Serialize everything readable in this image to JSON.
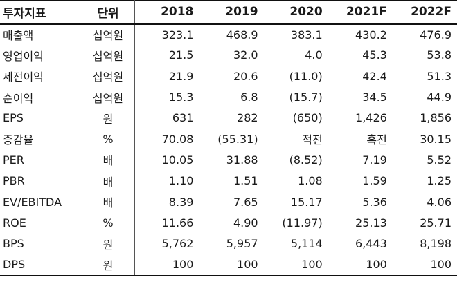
{
  "table": {
    "header": {
      "label": "투자지표",
      "unit": "단위",
      "years": [
        "2018",
        "2019",
        "2020",
        "2021F",
        "2022F"
      ]
    },
    "rows": [
      {
        "label": "매출액",
        "unit": "십억원",
        "values": [
          "323.1",
          "468.9",
          "383.1",
          "430.2",
          "476.9"
        ]
      },
      {
        "label": "영업이익",
        "unit": "십억원",
        "values": [
          "21.5",
          "32.0",
          "4.0",
          "45.3",
          "53.8"
        ]
      },
      {
        "label": "세전이익",
        "unit": "십억원",
        "values": [
          "21.9",
          "20.6",
          "(11.0)",
          "42.4",
          "51.3"
        ]
      },
      {
        "label": "순이익",
        "unit": "십억원",
        "values": [
          "15.3",
          "6.8",
          "(15.7)",
          "34.5",
          "44.9"
        ]
      },
      {
        "label": "EPS",
        "unit": "원",
        "values": [
          "631",
          "282",
          "(650)",
          "1,426",
          "1,856"
        ]
      },
      {
        "label": "증감율",
        "unit": "%",
        "values": [
          "70.08",
          "(55.31)",
          "적전",
          "흑전",
          "30.15"
        ]
      },
      {
        "label": "PER",
        "unit": "배",
        "values": [
          "10.05",
          "31.88",
          "(8.52)",
          "7.19",
          "5.52"
        ]
      },
      {
        "label": "PBR",
        "unit": "배",
        "values": [
          "1.10",
          "1.51",
          "1.08",
          "1.59",
          "1.25"
        ]
      },
      {
        "label": "EV/EBITDA",
        "unit": "배",
        "values": [
          "8.39",
          "7.65",
          "15.17",
          "5.36",
          "4.06"
        ]
      },
      {
        "label": "ROE",
        "unit": "%",
        "values": [
          "11.66",
          "4.90",
          "(11.97)",
          "25.13",
          "25.71"
        ]
      },
      {
        "label": "BPS",
        "unit": "원",
        "values": [
          "5,762",
          "5,957",
          "5,114",
          "6,443",
          "8,198"
        ]
      },
      {
        "label": "DPS",
        "unit": "원",
        "values": [
          "100",
          "100",
          "100",
          "100",
          "100"
        ]
      }
    ]
  }
}
